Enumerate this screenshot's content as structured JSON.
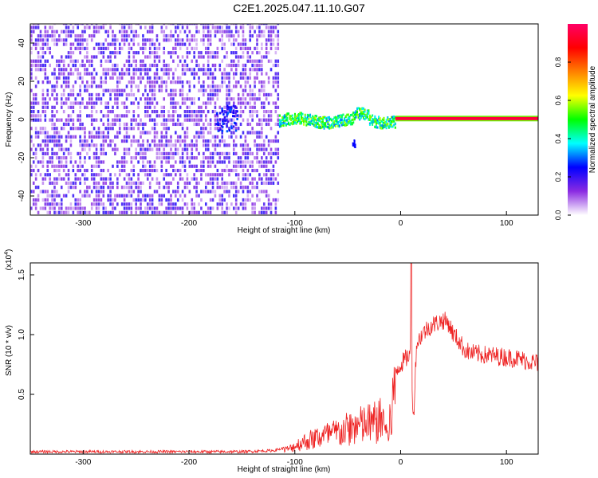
{
  "title": "C2E1.2025.047.11.10.G07",
  "chart_data": [
    {
      "type": "heatmap",
      "xlabel": "Height of straight line (km)",
      "ylabel": "Frequency (Hz)",
      "xlim": [
        -350,
        130
      ],
      "ylim": [
        -50,
        50
      ],
      "x_ticks": [
        -300,
        -200,
        -100,
        0,
        100
      ],
      "y_ticks": [
        -40,
        -20,
        0,
        20,
        40
      ],
      "colorbar": {
        "label": "Normalized spectral amplitude",
        "range": [
          0.0,
          1.0
        ],
        "ticks": [
          "0.0",
          "0.2",
          "0.4",
          "0.6",
          "0.8"
        ],
        "colormap": [
          "#ffffff",
          "#8a2be2",
          "#0000ff",
          "#00ffff",
          "#00ff00",
          "#ffff00",
          "#ff8000",
          "#ff0000",
          "#ff0066"
        ]
      },
      "regions": [
        {
          "name": "noise",
          "x_range": [
            -350,
            -115
          ],
          "f_range": [
            -50,
            50
          ],
          "amplitude": [
            0.05,
            0.25
          ]
        },
        {
          "name": "signal-onset",
          "x_range": [
            -115,
            -5
          ],
          "f_range": [
            -8,
            6
          ],
          "amplitude": [
            0.3,
            0.6
          ]
        },
        {
          "name": "tracked-carrier",
          "x_range": [
            -5,
            130
          ],
          "f_center": 0.5,
          "amplitude": [
            0.8,
            1.0
          ]
        }
      ]
    },
    {
      "type": "line",
      "xlabel": "Height of straight line (km)",
      "ylabel": "SNR (10 * v/v)",
      "scale_label": "(x10",
      "scale_exp": "4",
      "xlim": [
        -350,
        130
      ],
      "ylim": [
        0,
        1.6
      ],
      "x_ticks": [
        -300,
        -200,
        -100,
        0,
        100
      ],
      "y_ticks": [
        "0.5",
        "1.0",
        "1.5"
      ],
      "y_tick_values": [
        0.5,
        1.0,
        1.5
      ],
      "color": "#ee2222",
      "series": [
        {
          "x": [
            -350,
            -300,
            -250,
            -200,
            -150,
            -120,
            -105,
            -95,
            -85,
            -75,
            -65,
            -55,
            -45,
            -35,
            -25,
            -15,
            -12,
            -8,
            -5,
            0,
            5,
            10,
            12,
            15,
            20,
            25,
            30,
            35,
            40,
            45,
            50,
            55,
            60,
            65,
            70,
            80,
            90,
            100,
            110,
            120,
            130
          ],
          "values": [
            0.02,
            0.02,
            0.02,
            0.02,
            0.02,
            0.03,
            0.06,
            0.12,
            0.16,
            0.2,
            0.22,
            0.25,
            0.3,
            0.32,
            0.35,
            0.38,
            0.15,
            0.55,
            0.7,
            0.75,
            0.8,
            0.85,
            0.25,
            0.92,
            1.0,
            1.05,
            1.08,
            1.1,
            1.12,
            1.1,
            1.0,
            0.95,
            0.88,
            0.85,
            0.84,
            0.83,
            0.82,
            0.81,
            0.8,
            0.78,
            0.76
          ]
        }
      ]
    }
  ]
}
